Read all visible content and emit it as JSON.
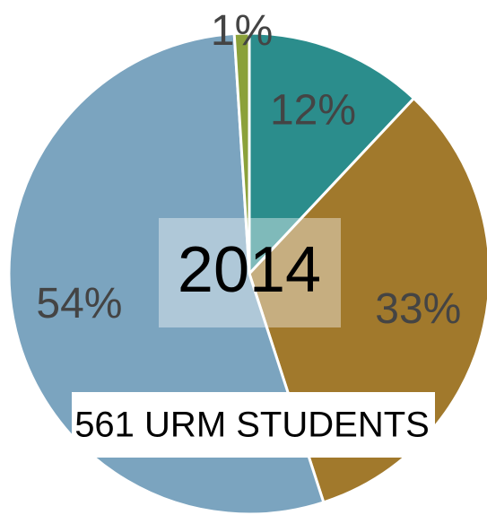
{
  "chart_data": {
    "type": "pie",
    "center_label": "2014",
    "note": "561 URM STUDENTS",
    "categories": [
      null,
      null,
      null,
      null
    ],
    "values": [
      12,
      33,
      54,
      1
    ],
    "value_labels": [
      "12%",
      "33%",
      "54%",
      "1%"
    ],
    "colors": [
      "#2b8d8c",
      "#a1792c",
      "#7ba4bf",
      "#8ba13a"
    ]
  }
}
